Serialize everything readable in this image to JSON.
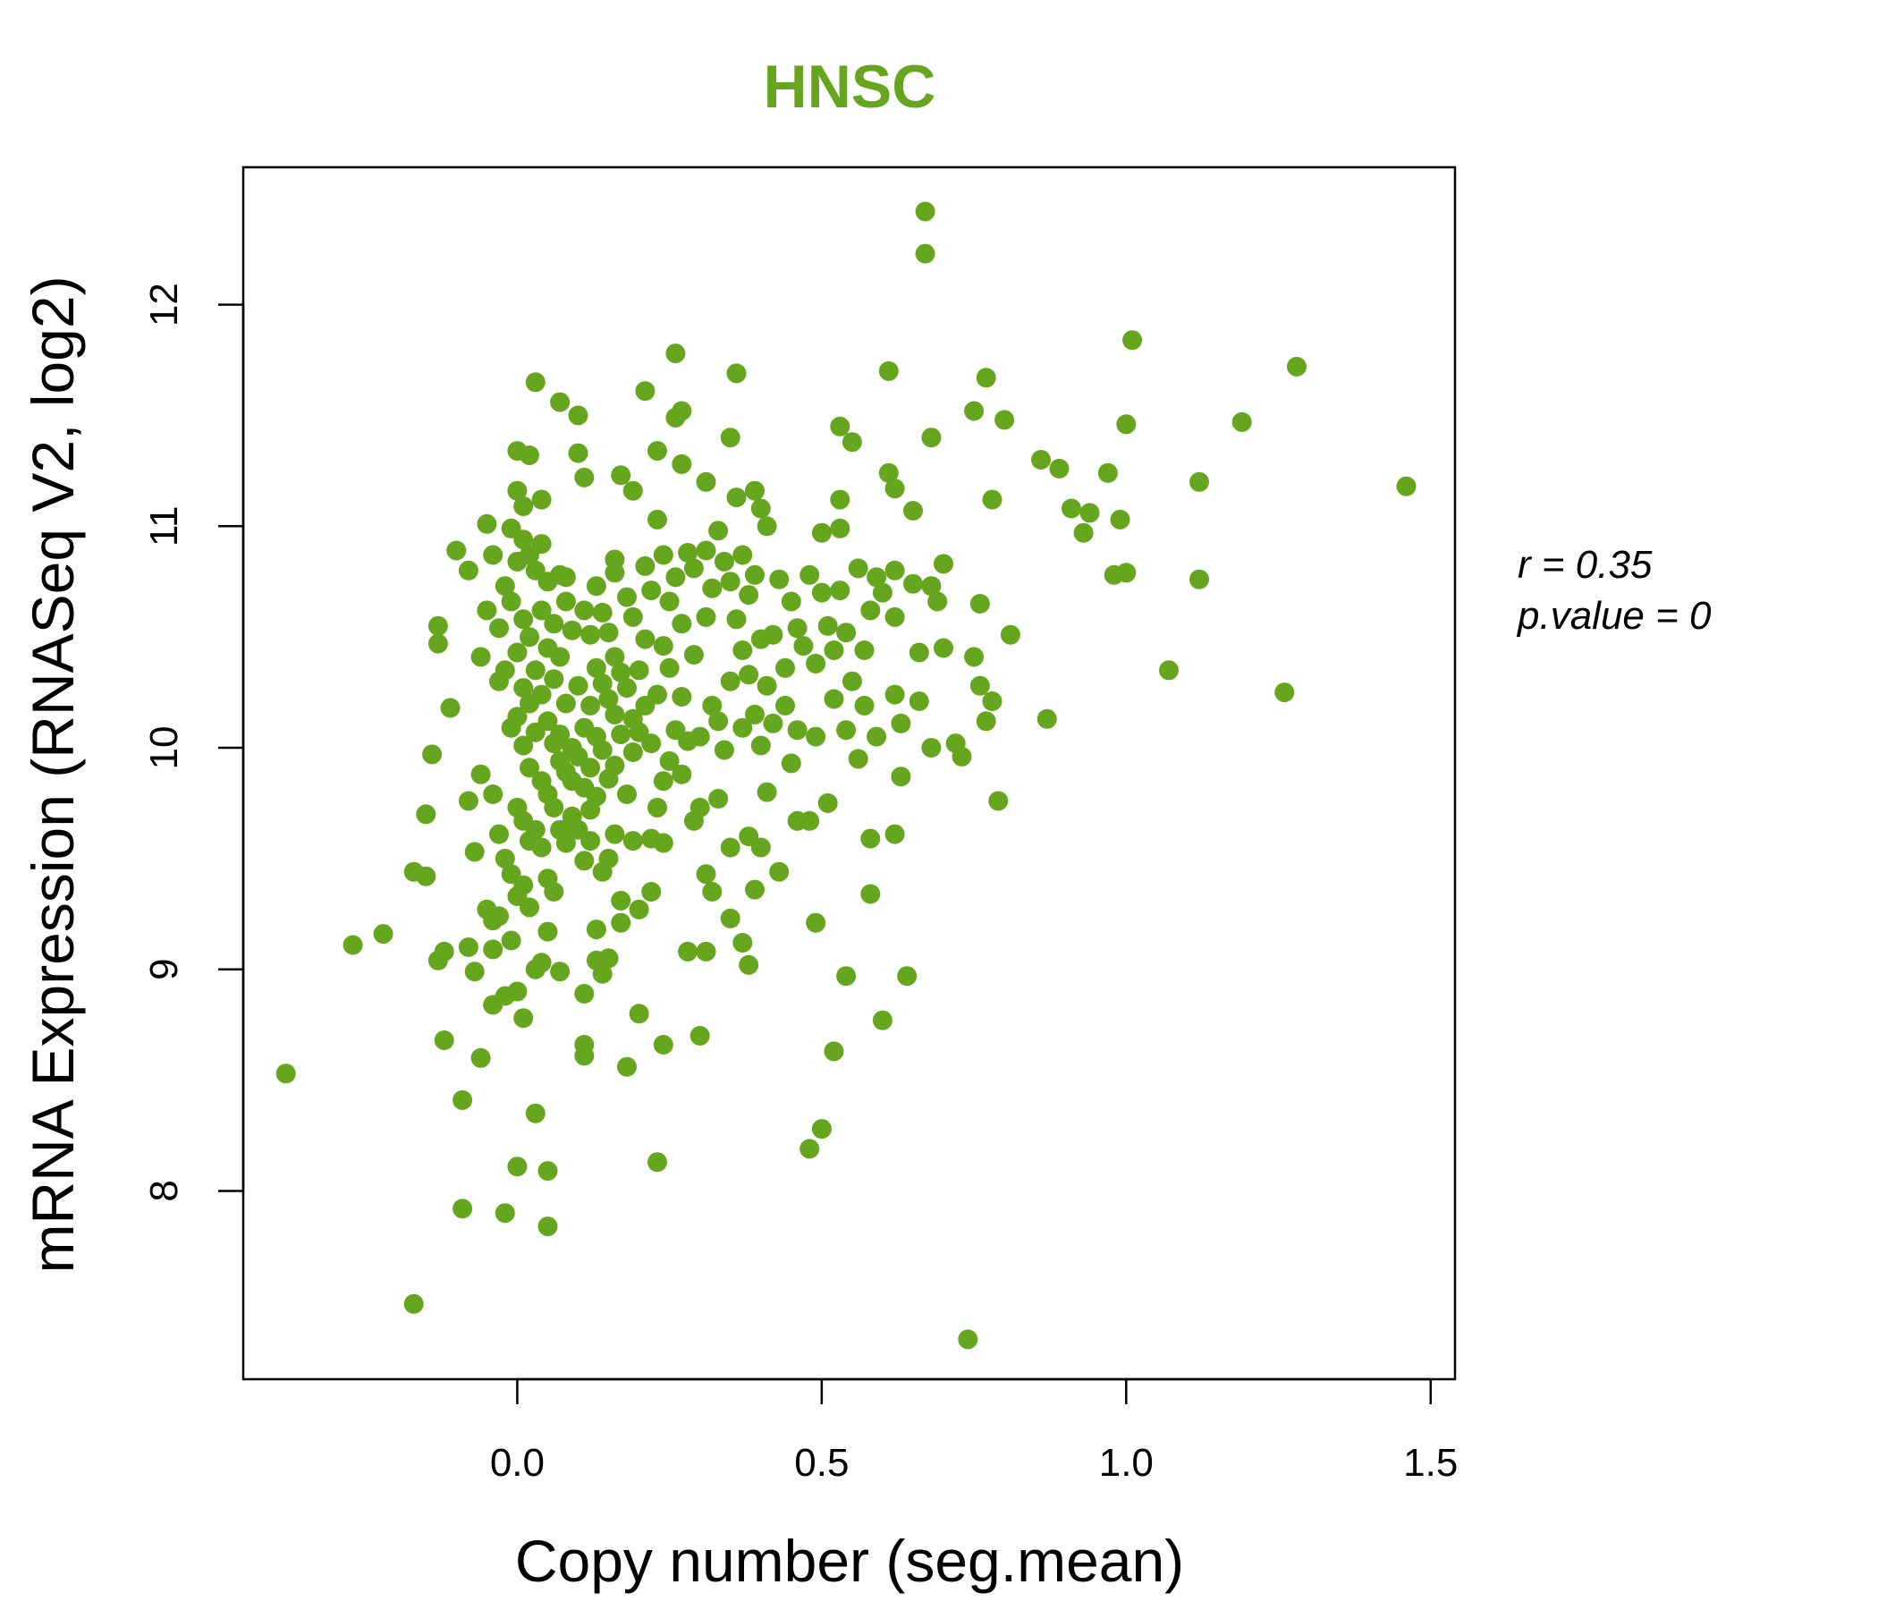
{
  "chart_data": {
    "type": "scatter",
    "title": "HNSC",
    "xlabel": "Copy number (seg.mean)",
    "ylabel": "mRNA Expression (RNASeq V2, log2)",
    "xlim": [
      -0.45,
      1.54
    ],
    "ylim": [
      7.15,
      12.62
    ],
    "xticks": [
      0.0,
      0.5,
      1.0,
      1.5
    ],
    "xtick_labels": [
      "0.0",
      "0.5",
      "1.0",
      "1.5"
    ],
    "yticks": [
      8,
      9,
      10,
      11,
      12
    ],
    "ytick_labels": [
      "8",
      "9",
      "10",
      "11",
      "12"
    ],
    "grid": false,
    "legend": "none",
    "point_color": "#66a61e",
    "title_color": "#66a61e",
    "annotation": {
      "r_label": "r = 0.35",
      "p_label": "p.value = 0"
    },
    "points": [
      [
        -0.38,
        8.53
      ],
      [
        -0.27,
        9.11
      ],
      [
        -0.22,
        9.16
      ],
      [
        -0.17,
        7.49
      ],
      [
        -0.17,
        9.44
      ],
      [
        -0.15,
        9.42
      ],
      [
        -0.15,
        9.7
      ],
      [
        -0.14,
        9.97
      ],
      [
        -0.13,
        10.47
      ],
      [
        -0.13,
        10.55
      ],
      [
        -0.13,
        9.04
      ],
      [
        -0.12,
        9.08
      ],
      [
        -0.12,
        8.68
      ],
      [
        -0.11,
        10.18
      ],
      [
        -0.1,
        10.89
      ],
      [
        -0.09,
        8.41
      ],
      [
        -0.09,
        7.92
      ],
      [
        -0.08,
        10.8
      ],
      [
        -0.08,
        9.76
      ],
      [
        -0.08,
        9.1
      ],
      [
        -0.07,
        9.53
      ],
      [
        -0.07,
        8.99
      ],
      [
        -0.06,
        10.41
      ],
      [
        -0.06,
        9.88
      ],
      [
        -0.06,
        8.6
      ],
      [
        -0.05,
        10.62
      ],
      [
        -0.05,
        11.01
      ],
      [
        -0.05,
        9.27
      ],
      [
        -0.04,
        10.87
      ],
      [
        -0.04,
        9.79
      ],
      [
        -0.04,
        9.22
      ],
      [
        -0.04,
        8.84
      ],
      [
        -0.04,
        9.09
      ],
      [
        -0.03,
        10.54
      ],
      [
        -0.03,
        10.3
      ],
      [
        -0.03,
        9.61
      ],
      [
        -0.03,
        9.24
      ],
      [
        -0.02,
        10.73
      ],
      [
        -0.02,
        10.35
      ],
      [
        -0.02,
        9.5
      ],
      [
        -0.02,
        8.88
      ],
      [
        -0.02,
        7.9
      ],
      [
        -0.01,
        10.99
      ],
      [
        -0.01,
        10.66
      ],
      [
        -0.01,
        10.09
      ],
      [
        -0.01,
        9.43
      ],
      [
        -0.01,
        9.13
      ],
      [
        0.0,
        11.34
      ],
      [
        0.0,
        11.16
      ],
      [
        0.0,
        10.84
      ],
      [
        0.0,
        10.43
      ],
      [
        0.0,
        10.14
      ],
      [
        0.0,
        9.73
      ],
      [
        0.0,
        9.33
      ],
      [
        0.0,
        8.9
      ],
      [
        0.0,
        8.11
      ],
      [
        0.01,
        11.09
      ],
      [
        0.01,
        10.94
      ],
      [
        0.01,
        10.58
      ],
      [
        0.01,
        10.27
      ],
      [
        0.01,
        10.01
      ],
      [
        0.01,
        9.67
      ],
      [
        0.01,
        9.38
      ],
      [
        0.01,
        8.78
      ],
      [
        0.02,
        10.87
      ],
      [
        0.02,
        10.5
      ],
      [
        0.02,
        10.2
      ],
      [
        0.02,
        9.91
      ],
      [
        0.02,
        9.58
      ],
      [
        0.02,
        9.28
      ],
      [
        0.02,
        11.32
      ],
      [
        0.03,
        10.8
      ],
      [
        0.03,
        10.35
      ],
      [
        0.03,
        10.07
      ],
      [
        0.03,
        9.63
      ],
      [
        0.03,
        9.0
      ],
      [
        0.03,
        8.35
      ],
      [
        0.03,
        11.65
      ],
      [
        0.04,
        10.92
      ],
      [
        0.04,
        10.62
      ],
      [
        0.04,
        10.24
      ],
      [
        0.04,
        9.85
      ],
      [
        0.04,
        9.55
      ],
      [
        0.04,
        9.03
      ],
      [
        0.04,
        11.12
      ],
      [
        0.05,
        10.75
      ],
      [
        0.05,
        10.45
      ],
      [
        0.05,
        10.12
      ],
      [
        0.05,
        9.79
      ],
      [
        0.05,
        9.41
      ],
      [
        0.05,
        9.17
      ],
      [
        0.05,
        7.84
      ],
      [
        0.05,
        8.09
      ],
      [
        0.06,
        10.56
      ],
      [
        0.06,
        10.31
      ],
      [
        0.06,
        10.02
      ],
      [
        0.06,
        9.73
      ],
      [
        0.06,
        9.35
      ],
      [
        0.07,
        10.78
      ],
      [
        0.07,
        10.41
      ],
      [
        0.07,
        10.06
      ],
      [
        0.07,
        9.94
      ],
      [
        0.07,
        9.63
      ],
      [
        0.07,
        8.99
      ],
      [
        0.07,
        11.56
      ],
      [
        0.08,
        10.66
      ],
      [
        0.08,
        10.2
      ],
      [
        0.08,
        9.89
      ],
      [
        0.08,
        9.57
      ],
      [
        0.08,
        10.77
      ],
      [
        0.09,
        10.53
      ],
      [
        0.09,
        10.0
      ],
      [
        0.09,
        9.85
      ],
      [
        0.09,
        9.69
      ],
      [
        0.1,
        11.5
      ],
      [
        0.1,
        11.33
      ],
      [
        0.1,
        10.28
      ],
      [
        0.1,
        9.96
      ],
      [
        0.1,
        9.63
      ],
      [
        0.11,
        11.22
      ],
      [
        0.11,
        10.62
      ],
      [
        0.11,
        10.09
      ],
      [
        0.11,
        9.82
      ],
      [
        0.11,
        9.49
      ],
      [
        0.11,
        8.89
      ],
      [
        0.11,
        8.61
      ],
      [
        0.11,
        8.66
      ],
      [
        0.12,
        10.51
      ],
      [
        0.12,
        10.19
      ],
      [
        0.12,
        9.91
      ],
      [
        0.12,
        9.72
      ],
      [
        0.12,
        9.58
      ],
      [
        0.13,
        10.73
      ],
      [
        0.13,
        10.36
      ],
      [
        0.13,
        10.05
      ],
      [
        0.13,
        9.78
      ],
      [
        0.13,
        9.18
      ],
      [
        0.13,
        9.04
      ],
      [
        0.14,
        10.61
      ],
      [
        0.14,
        10.29
      ],
      [
        0.14,
        9.99
      ],
      [
        0.14,
        9.44
      ],
      [
        0.14,
        8.98
      ],
      [
        0.15,
        10.52
      ],
      [
        0.15,
        10.22
      ],
      [
        0.15,
        9.86
      ],
      [
        0.15,
        9.5
      ],
      [
        0.15,
        9.05
      ],
      [
        0.16,
        10.85
      ],
      [
        0.16,
        10.79
      ],
      [
        0.16,
        10.41
      ],
      [
        0.16,
        10.15
      ],
      [
        0.16,
        9.92
      ],
      [
        0.16,
        9.61
      ],
      [
        0.17,
        11.23
      ],
      [
        0.17,
        10.34
      ],
      [
        0.17,
        10.06
      ],
      [
        0.17,
        9.31
      ],
      [
        0.17,
        9.21
      ],
      [
        0.18,
        10.68
      ],
      [
        0.18,
        10.27
      ],
      [
        0.18,
        9.79
      ],
      [
        0.18,
        8.56
      ],
      [
        0.19,
        11.16
      ],
      [
        0.19,
        10.59
      ],
      [
        0.19,
        10.13
      ],
      [
        0.19,
        9.98
      ],
      [
        0.19,
        9.58
      ],
      [
        0.2,
        10.35
      ],
      [
        0.2,
        10.07
      ],
      [
        0.2,
        9.27
      ],
      [
        0.2,
        8.8
      ],
      [
        0.21,
        11.61
      ],
      [
        0.21,
        10.82
      ],
      [
        0.21,
        10.49
      ],
      [
        0.21,
        10.19
      ],
      [
        0.22,
        10.71
      ],
      [
        0.22,
        10.02
      ],
      [
        0.22,
        9.35
      ],
      [
        0.22,
        9.59
      ],
      [
        0.23,
        11.34
      ],
      [
        0.23,
        11.03
      ],
      [
        0.23,
        10.24
      ],
      [
        0.23,
        9.73
      ],
      [
        0.23,
        8.13
      ],
      [
        0.24,
        10.87
      ],
      [
        0.24,
        10.46
      ],
      [
        0.24,
        9.85
      ],
      [
        0.24,
        8.66
      ],
      [
        0.24,
        9.57
      ],
      [
        0.25,
        10.66
      ],
      [
        0.25,
        10.36
      ],
      [
        0.25,
        9.94
      ],
      [
        0.26,
        11.78
      ],
      [
        0.26,
        11.49
      ],
      [
        0.26,
        10.77
      ],
      [
        0.26,
        10.08
      ],
      [
        0.27,
        11.52
      ],
      [
        0.27,
        11.28
      ],
      [
        0.27,
        10.56
      ],
      [
        0.27,
        10.23
      ],
      [
        0.27,
        9.88
      ],
      [
        0.28,
        10.88
      ],
      [
        0.28,
        10.03
      ],
      [
        0.28,
        9.08
      ],
      [
        0.29,
        10.81
      ],
      [
        0.29,
        10.42
      ],
      [
        0.29,
        9.67
      ],
      [
        0.3,
        10.05
      ],
      [
        0.3,
        9.73
      ],
      [
        0.3,
        8.7
      ],
      [
        0.31,
        11.2
      ],
      [
        0.31,
        10.89
      ],
      [
        0.31,
        10.59
      ],
      [
        0.31,
        9.43
      ],
      [
        0.31,
        9.08
      ],
      [
        0.32,
        10.72
      ],
      [
        0.32,
        10.19
      ],
      [
        0.32,
        9.35
      ],
      [
        0.33,
        10.98
      ],
      [
        0.33,
        10.12
      ],
      [
        0.33,
        9.77
      ],
      [
        0.34,
        10.84
      ],
      [
        0.34,
        9.99
      ],
      [
        0.35,
        11.4
      ],
      [
        0.35,
        10.75
      ],
      [
        0.35,
        10.3
      ],
      [
        0.35,
        9.55
      ],
      [
        0.35,
        9.23
      ],
      [
        0.36,
        11.69
      ],
      [
        0.36,
        11.13
      ],
      [
        0.36,
        10.58
      ],
      [
        0.37,
        10.87
      ],
      [
        0.37,
        10.44
      ],
      [
        0.37,
        10.09
      ],
      [
        0.37,
        9.12
      ],
      [
        0.38,
        10.69
      ],
      [
        0.38,
        10.33
      ],
      [
        0.38,
        9.6
      ],
      [
        0.38,
        9.02
      ],
      [
        0.39,
        11.16
      ],
      [
        0.39,
        10.78
      ],
      [
        0.39,
        10.15
      ],
      [
        0.39,
        9.36
      ],
      [
        0.4,
        11.08
      ],
      [
        0.4,
        10.49
      ],
      [
        0.4,
        10.01
      ],
      [
        0.4,
        9.55
      ],
      [
        0.41,
        11.0
      ],
      [
        0.41,
        10.28
      ],
      [
        0.41,
        9.8
      ],
      [
        0.42,
        10.51
      ],
      [
        0.42,
        10.11
      ],
      [
        0.43,
        10.76
      ],
      [
        0.43,
        9.44
      ],
      [
        0.44,
        10.36
      ],
      [
        0.44,
        10.19
      ],
      [
        0.45,
        10.66
      ],
      [
        0.45,
        9.93
      ],
      [
        0.46,
        10.54
      ],
      [
        0.46,
        10.08
      ],
      [
        0.46,
        9.67
      ],
      [
        0.47,
        10.46
      ],
      [
        0.48,
        10.78
      ],
      [
        0.48,
        9.67
      ],
      [
        0.48,
        8.19
      ],
      [
        0.49,
        10.38
      ],
      [
        0.49,
        10.05
      ],
      [
        0.49,
        9.21
      ],
      [
        0.5,
        10.7
      ],
      [
        0.5,
        10.97
      ],
      [
        0.5,
        8.28
      ],
      [
        0.51,
        10.55
      ],
      [
        0.51,
        9.75
      ],
      [
        0.52,
        10.44
      ],
      [
        0.52,
        10.22
      ],
      [
        0.52,
        8.63
      ],
      [
        0.53,
        11.45
      ],
      [
        0.53,
        11.12
      ],
      [
        0.53,
        10.99
      ],
      [
        0.53,
        10.71
      ],
      [
        0.54,
        10.52
      ],
      [
        0.54,
        10.08
      ],
      [
        0.54,
        8.97
      ],
      [
        0.55,
        11.38
      ],
      [
        0.55,
        10.3
      ],
      [
        0.56,
        10.81
      ],
      [
        0.56,
        9.95
      ],
      [
        0.57,
        10.44
      ],
      [
        0.57,
        10.19
      ],
      [
        0.58,
        10.62
      ],
      [
        0.58,
        9.59
      ],
      [
        0.58,
        9.34
      ],
      [
        0.59,
        10.77
      ],
      [
        0.59,
        10.05
      ],
      [
        0.6,
        8.77
      ],
      [
        0.6,
        10.7
      ],
      [
        0.61,
        11.24
      ],
      [
        0.61,
        11.7
      ],
      [
        0.62,
        11.17
      ],
      [
        0.62,
        10.8
      ],
      [
        0.62,
        10.59
      ],
      [
        0.62,
        10.24
      ],
      [
        0.62,
        9.61
      ],
      [
        0.63,
        10.11
      ],
      [
        0.63,
        9.87
      ],
      [
        0.64,
        8.97
      ],
      [
        0.65,
        11.07
      ],
      [
        0.65,
        10.74
      ],
      [
        0.66,
        10.21
      ],
      [
        0.66,
        10.43
      ],
      [
        0.67,
        12.42
      ],
      [
        0.67,
        12.23
      ],
      [
        0.68,
        10.73
      ],
      [
        0.68,
        11.4
      ],
      [
        0.68,
        10.0
      ],
      [
        0.69,
        10.66
      ],
      [
        0.7,
        10.83
      ],
      [
        0.7,
        10.45
      ],
      [
        0.72,
        10.02
      ],
      [
        0.73,
        9.96
      ],
      [
        0.74,
        7.33
      ],
      [
        0.75,
        11.52
      ],
      [
        0.75,
        10.41
      ],
      [
        0.76,
        10.28
      ],
      [
        0.76,
        10.65
      ],
      [
        0.77,
        10.12
      ],
      [
        0.77,
        11.67
      ],
      [
        0.78,
        10.21
      ],
      [
        0.78,
        11.12
      ],
      [
        0.79,
        9.76
      ],
      [
        0.8,
        11.48
      ],
      [
        0.81,
        10.51
      ],
      [
        0.86,
        11.3
      ],
      [
        0.87,
        10.13
      ],
      [
        0.89,
        11.26
      ],
      [
        0.91,
        11.08
      ],
      [
        0.93,
        10.97
      ],
      [
        0.94,
        11.06
      ],
      [
        0.97,
        11.24
      ],
      [
        0.98,
        10.78
      ],
      [
        0.99,
        11.03
      ],
      [
        1.0,
        10.79
      ],
      [
        1.0,
        11.46
      ],
      [
        1.01,
        11.84
      ],
      [
        1.07,
        10.35
      ],
      [
        1.12,
        11.2
      ],
      [
        1.12,
        10.76
      ],
      [
        1.19,
        11.47
      ],
      [
        1.26,
        10.25
      ],
      [
        1.28,
        11.72
      ],
      [
        1.46,
        11.18
      ]
    ]
  }
}
